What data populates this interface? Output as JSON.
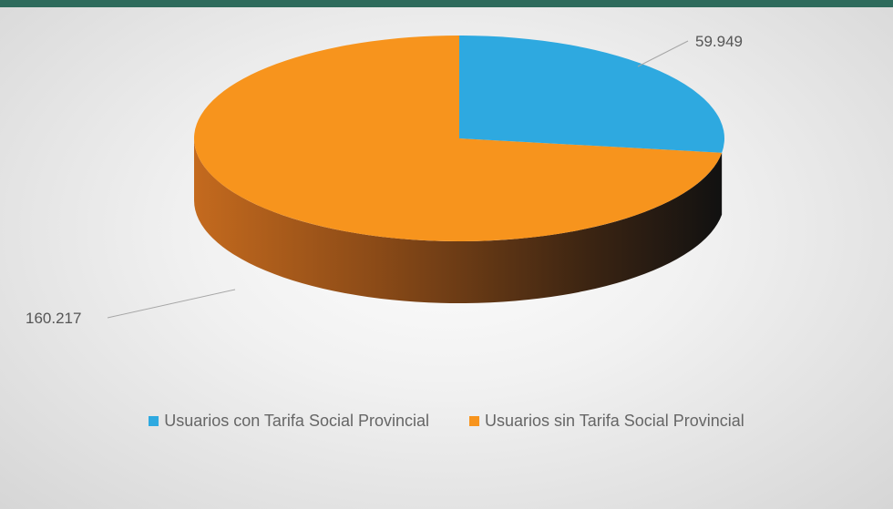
{
  "colors": {
    "topbar": "#2e6b5c",
    "series_con": "#2ea9e0",
    "series_sin": "#f7941d",
    "leader": "#a6a6a6"
  },
  "chart_data": {
    "type": "pie",
    "style": "3d",
    "categories": [
      "Usuarios con Tarifa Social Provincial",
      "Usuarios sin Tarifa Social Provincial"
    ],
    "values": [
      59949,
      160217
    ],
    "data_labels": [
      "59.949",
      "160.217"
    ],
    "legend_position": "bottom"
  }
}
